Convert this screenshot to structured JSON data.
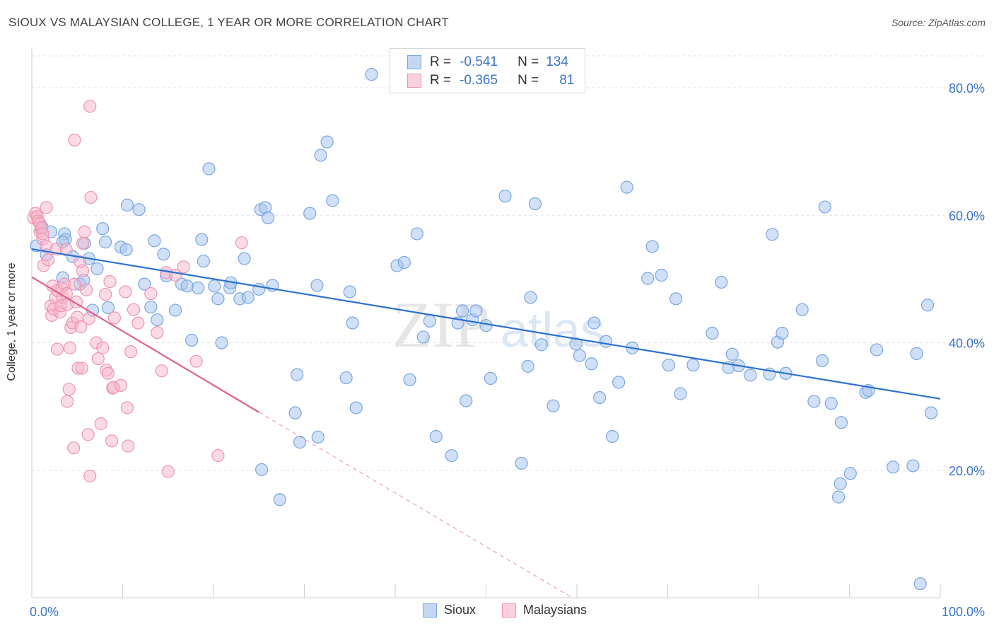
{
  "title": "SIOUX VS MALAYSIAN COLLEGE, 1 YEAR OR MORE CORRELATION CHART",
  "source": "Source: ZipAtlas.com",
  "watermark": {
    "zip": "ZIP",
    "atlas": "atlas"
  },
  "legend": {
    "rows": [
      {
        "r_label": "R =",
        "r_value": "-0.541",
        "n_label": "N =",
        "n_value": "134"
      },
      {
        "r_label": "R =",
        "r_value": "-0.365",
        "n_label": "N =",
        "n_value": "81"
      }
    ]
  },
  "bottom_legend": [
    "Sioux",
    "Malaysians"
  ],
  "colors": {
    "sioux_fill": "#a9c6ee",
    "sioux_stroke": "#7aa6e0",
    "sioux_line": "#2e70d0",
    "malay_fill": "#f5b8cb",
    "malay_stroke": "#ee94b1",
    "malay_line": "#e0608f",
    "axis_text": "#3a74c8",
    "grid": "#e4e4e4"
  },
  "chart_data": {
    "type": "scatter",
    "title": "SIOUX VS MALAYSIAN COLLEGE, 1 YEAR OR MORE CORRELATION CHART",
    "xlabel": "",
    "ylabel": "College, 1 year or more",
    "xlim": [
      0,
      100
    ],
    "ylim": [
      0,
      85
    ],
    "x_tick_labels": [
      "0.0%",
      "100.0%"
    ],
    "y_ticks": [
      20,
      40,
      60,
      80
    ],
    "y_tick_labels": [
      "20.0%",
      "40.0%",
      "60.0%",
      "80.0%"
    ],
    "grid": true,
    "legend_position": "top-center",
    "series": [
      {
        "name": "Sioux",
        "r": -0.541,
        "n": 134,
        "trend": {
          "x": [
            0,
            100
          ],
          "y": [
            54.7,
            31.2
          ]
        },
        "points": [
          [
            0.5,
            55.2
          ],
          [
            1.0,
            57.9
          ],
          [
            1.1,
            58.2
          ],
          [
            1.6,
            53.8
          ],
          [
            2.1,
            57.4
          ],
          [
            3.4,
            50.2
          ],
          [
            3.6,
            57.1
          ],
          [
            3.7,
            56.2
          ],
          [
            3.4,
            55.8
          ],
          [
            4.5,
            53.5
          ],
          [
            5.3,
            49.2
          ],
          [
            5.7,
            49.8
          ],
          [
            5.8,
            55.6
          ],
          [
            6.3,
            53.2
          ],
          [
            6.7,
            45.1
          ],
          [
            7.2,
            51.6
          ],
          [
            7.8,
            57.9
          ],
          [
            8.1,
            55.8
          ],
          [
            8.4,
            45.5
          ],
          [
            10.5,
            61.6
          ],
          [
            9.8,
            55.0
          ],
          [
            10.4,
            54.6
          ],
          [
            11.8,
            60.9
          ],
          [
            12.4,
            49.2
          ],
          [
            13.1,
            45.6
          ],
          [
            13.8,
            43.6
          ],
          [
            13.5,
            56.0
          ],
          [
            14.5,
            53.9
          ],
          [
            14.8,
            50.5
          ],
          [
            15.8,
            45.1
          ],
          [
            16.5,
            49.2
          ],
          [
            17.1,
            48.9
          ],
          [
            17.6,
            40.4
          ],
          [
            18.3,
            48.6
          ],
          [
            18.7,
            56.2
          ],
          [
            18.9,
            52.8
          ],
          [
            19.5,
            67.3
          ],
          [
            20.1,
            48.9
          ],
          [
            20.5,
            46.9
          ],
          [
            20.9,
            40.0
          ],
          [
            21.8,
            48.6
          ],
          [
            21.9,
            49.4
          ],
          [
            22.9,
            46.9
          ],
          [
            23.4,
            53.2
          ],
          [
            23.8,
            47.1
          ],
          [
            25.0,
            48.4
          ],
          [
            25.2,
            60.9
          ],
          [
            25.7,
            61.2
          ],
          [
            26.0,
            59.6
          ],
          [
            26.5,
            49.0
          ],
          [
            27.3,
            15.4
          ],
          [
            29.0,
            29.0
          ],
          [
            29.2,
            35.0
          ],
          [
            29.5,
            24.4
          ],
          [
            30.6,
            60.3
          ],
          [
            31.4,
            49.0
          ],
          [
            31.5,
            25.2
          ],
          [
            31.8,
            69.4
          ],
          [
            32.5,
            71.5
          ],
          [
            33.1,
            62.3
          ],
          [
            34.6,
            34.5
          ],
          [
            35.0,
            48.0
          ],
          [
            35.3,
            43.1
          ],
          [
            35.7,
            29.8
          ],
          [
            37.4,
            82.1
          ],
          [
            40.2,
            52.1
          ],
          [
            41.0,
            52.6
          ],
          [
            41.6,
            34.2
          ],
          [
            42.4,
            57.1
          ],
          [
            43.1,
            40.9
          ],
          [
            43.8,
            43.4
          ],
          [
            44.5,
            25.3
          ],
          [
            46.2,
            22.3
          ],
          [
            46.9,
            43.1
          ],
          [
            47.4,
            45.0
          ],
          [
            47.8,
            30.9
          ],
          [
            48.5,
            43.6
          ],
          [
            48.9,
            45.0
          ],
          [
            50.0,
            42.7
          ],
          [
            50.5,
            34.4
          ],
          [
            52.1,
            63.0
          ],
          [
            53.9,
            21.1
          ],
          [
            54.6,
            36.3
          ],
          [
            54.9,
            47.1
          ],
          [
            55.4,
            61.8
          ],
          [
            56.1,
            39.7
          ],
          [
            57.4,
            30.1
          ],
          [
            59.9,
            39.8
          ],
          [
            60.3,
            38.0
          ],
          [
            61.6,
            36.7
          ],
          [
            61.9,
            43.1
          ],
          [
            62.5,
            31.4
          ],
          [
            63.9,
            25.3
          ],
          [
            64.6,
            33.8
          ],
          [
            65.5,
            64.4
          ],
          [
            66.1,
            39.2
          ],
          [
            67.8,
            50.1
          ],
          [
            68.3,
            55.1
          ],
          [
            69.3,
            50.6
          ],
          [
            70.1,
            36.5
          ],
          [
            70.9,
            46.9
          ],
          [
            71.4,
            32.0
          ],
          [
            72.8,
            36.5
          ],
          [
            74.9,
            41.5
          ],
          [
            75.9,
            49.5
          ],
          [
            76.7,
            36.1
          ],
          [
            77.1,
            38.2
          ],
          [
            77.8,
            36.4
          ],
          [
            79.1,
            34.9
          ],
          [
            81.2,
            35.1
          ],
          [
            81.5,
            57.0
          ],
          [
            82.1,
            40.1
          ],
          [
            82.6,
            41.5
          ],
          [
            83.0,
            35.2
          ],
          [
            84.8,
            45.2
          ],
          [
            86.1,
            30.8
          ],
          [
            87.0,
            37.2
          ],
          [
            87.3,
            61.3
          ],
          [
            88.0,
            30.5
          ],
          [
            88.8,
            15.8
          ],
          [
            89.0,
            17.9
          ],
          [
            89.1,
            27.5
          ],
          [
            90.1,
            19.5
          ],
          [
            91.8,
            32.2
          ],
          [
            92.1,
            32.5
          ],
          [
            93.0,
            38.9
          ],
          [
            94.8,
            20.5
          ],
          [
            97.0,
            20.7
          ],
          [
            97.4,
            38.3
          ],
          [
            98.6,
            45.9
          ],
          [
            99.0,
            29.0
          ],
          [
            97.8,
            2.2
          ],
          [
            25.3,
            20.1
          ],
          [
            63.2,
            40.2
          ]
        ]
      },
      {
        "name": "Malaysians",
        "r": -0.365,
        "n": 81,
        "trend": {
          "x": [
            0,
            25
          ],
          "y": [
            50.3,
            29.1
          ]
        },
        "trend_dashed": {
          "x": [
            25,
            59.5
          ],
          "y": [
            29.1,
            0
          ]
        },
        "points": [
          [
            0.2,
            59.6
          ],
          [
            0.4,
            60.3
          ],
          [
            0.6,
            59.8
          ],
          [
            0.7,
            59.1
          ],
          [
            0.9,
            57.4
          ],
          [
            0.9,
            58.7
          ],
          [
            1.1,
            58.0
          ],
          [
            1.2,
            56.3
          ],
          [
            1.2,
            57.1
          ],
          [
            1.3,
            52.1
          ],
          [
            1.6,
            55.1
          ],
          [
            1.6,
            61.2
          ],
          [
            1.8,
            53.0
          ],
          [
            2.1,
            45.8
          ],
          [
            2.2,
            44.3
          ],
          [
            2.3,
            48.9
          ],
          [
            2.4,
            45.3
          ],
          [
            2.6,
            47.1
          ],
          [
            2.7,
            54.7
          ],
          [
            2.8,
            48.2
          ],
          [
            2.8,
            39.0
          ],
          [
            3.1,
            44.8
          ],
          [
            3.2,
            45.8
          ],
          [
            3.3,
            48.6
          ],
          [
            3.4,
            47.1
          ],
          [
            3.6,
            49.2
          ],
          [
            3.8,
            47.7
          ],
          [
            3.8,
            54.6
          ],
          [
            3.9,
            46.0
          ],
          [
            3.9,
            30.8
          ],
          [
            4.1,
            32.7
          ],
          [
            4.2,
            39.2
          ],
          [
            4.3,
            42.4
          ],
          [
            4.5,
            43.1
          ],
          [
            4.6,
            23.5
          ],
          [
            4.7,
            49.2
          ],
          [
            4.7,
            71.8
          ],
          [
            4.9,
            46.4
          ],
          [
            5.0,
            44.0
          ],
          [
            5.1,
            36.0
          ],
          [
            5.3,
            52.7
          ],
          [
            5.4,
            42.5
          ],
          [
            5.5,
            36.0
          ],
          [
            5.6,
            55.6
          ],
          [
            5.6,
            51.3
          ],
          [
            5.8,
            57.4
          ],
          [
            6.0,
            48.3
          ],
          [
            6.2,
            25.6
          ],
          [
            6.3,
            43.8
          ],
          [
            6.4,
            19.1
          ],
          [
            6.4,
            77.1
          ],
          [
            6.5,
            62.8
          ],
          [
            7.1,
            40.0
          ],
          [
            7.3,
            37.5
          ],
          [
            7.6,
            27.3
          ],
          [
            7.8,
            39.2
          ],
          [
            8.1,
            47.6
          ],
          [
            8.2,
            35.7
          ],
          [
            8.4,
            35.2
          ],
          [
            8.6,
            49.6
          ],
          [
            8.8,
            24.6
          ],
          [
            8.9,
            32.9
          ],
          [
            9.0,
            33.0
          ],
          [
            9.1,
            43.9
          ],
          [
            9.8,
            33.3
          ],
          [
            10.3,
            48.0
          ],
          [
            10.5,
            29.8
          ],
          [
            10.6,
            23.8
          ],
          [
            10.9,
            38.6
          ],
          [
            11.2,
            45.2
          ],
          [
            11.7,
            43.1
          ],
          [
            13.1,
            47.7
          ],
          [
            13.8,
            41.6
          ],
          [
            14.3,
            35.6
          ],
          [
            14.8,
            51.0
          ],
          [
            15.0,
            19.8
          ],
          [
            15.8,
            50.6
          ],
          [
            16.7,
            51.9
          ],
          [
            18.1,
            37.1
          ],
          [
            20.5,
            22.3
          ],
          [
            23.1,
            55.7
          ]
        ]
      }
    ]
  }
}
